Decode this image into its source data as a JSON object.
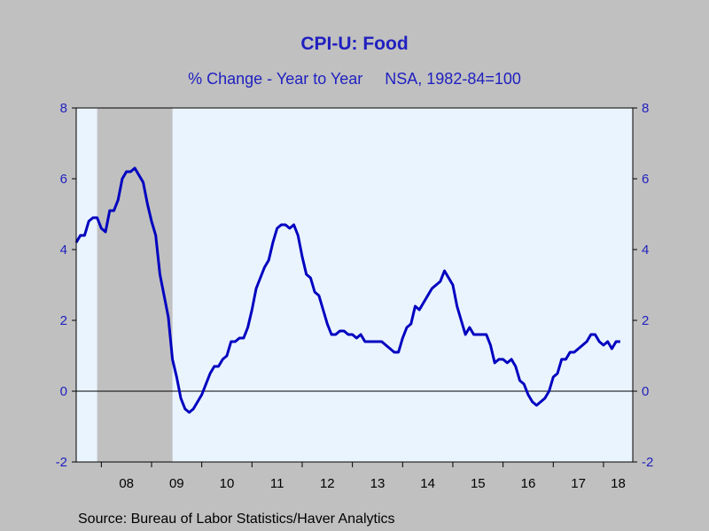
{
  "title": "CPI-U: Food",
  "subtitle": "% Change - Year to Year     NSA, 1982-84=100",
  "source": "Source:  Bureau of Labor Statistics/Haver Analytics",
  "colors": {
    "line": "#0000c0",
    "plot_bg": "#eaf4ff",
    "recession": "#c0c0c0",
    "axis_text": "#2020c0"
  },
  "chart_data": {
    "type": "line",
    "title": "CPI-U: Food",
    "subtitle": "% Change - Year to Year     NSA, 1982-84=100",
    "xlabel": "",
    "ylabel": "",
    "xlim": [
      "2007-07",
      "2018-08"
    ],
    "ylim": [
      -2,
      8
    ],
    "yticks": [
      -2,
      0,
      2,
      4,
      6,
      8
    ],
    "xtick_labels": [
      "08",
      "09",
      "10",
      "11",
      "12",
      "13",
      "14",
      "15",
      "16",
      "17",
      "18"
    ],
    "recession_shading": [
      {
        "start": "2007-12",
        "end": "2009-06"
      }
    ],
    "series": [
      {
        "start": "2007-07",
        "frequency": "monthly",
        "values": [
          4.2,
          4.4,
          4.4,
          4.8,
          4.9,
          4.9,
          4.6,
          4.5,
          5.1,
          5.1,
          5.4,
          6.0,
          6.2,
          6.2,
          6.3,
          6.1,
          5.9,
          5.3,
          4.8,
          4.4,
          3.3,
          2.7,
          2.1,
          0.9,
          0.4,
          -0.2,
          -0.5,
          -0.6,
          -0.5,
          -0.3,
          -0.1,
          0.2,
          0.5,
          0.7,
          0.7,
          0.9,
          1.0,
          1.4,
          1.4,
          1.5,
          1.5,
          1.8,
          2.3,
          2.9,
          3.2,
          3.5,
          3.7,
          4.2,
          4.6,
          4.7,
          4.7,
          4.6,
          4.7,
          4.4,
          3.8,
          3.3,
          3.2,
          2.8,
          2.7,
          2.3,
          1.9,
          1.6,
          1.6,
          1.7,
          1.7,
          1.6,
          1.6,
          1.5,
          1.6,
          1.4,
          1.4,
          1.4,
          1.4,
          1.4,
          1.3,
          1.2,
          1.1,
          1.1,
          1.5,
          1.8,
          1.9,
          2.4,
          2.3,
          2.5,
          2.7,
          2.9,
          3.0,
          3.1,
          3.4,
          3.2,
          3.0,
          2.4,
          2.0,
          1.6,
          1.8,
          1.6,
          1.6,
          1.6,
          1.6,
          1.3,
          0.8,
          0.9,
          0.9,
          0.8,
          0.9,
          0.7,
          0.3,
          0.2,
          -0.1,
          -0.3,
          -0.4,
          -0.3,
          -0.2,
          0.0,
          0.4,
          0.5,
          0.9,
          0.9,
          1.1,
          1.1,
          1.2,
          1.3,
          1.4,
          1.6,
          1.6,
          1.4,
          1.3,
          1.4,
          1.2,
          1.4,
          1.4
        ]
      }
    ]
  }
}
